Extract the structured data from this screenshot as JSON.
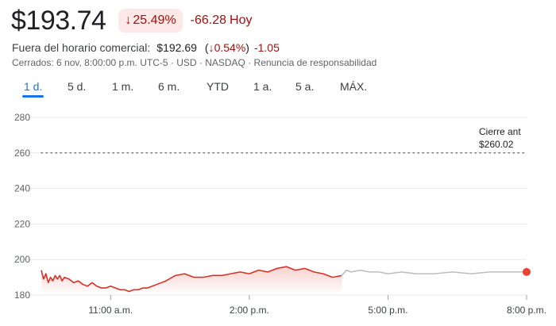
{
  "quote": {
    "price": "$193.74",
    "change_pct_arrow": "↓",
    "change_pct": "25.49%",
    "change_abs": "-66.28",
    "period_label": "Hoy"
  },
  "after_hours": {
    "label": "Fuera del horario comercial:",
    "price": "$192.69",
    "pct_open": "(",
    "pct_arrow": "↓",
    "pct": "0.54%",
    "pct_close": ")",
    "abs": "-1.05"
  },
  "meta": "Cerrados: 6 nov, 8:00:00 p.m. UTC-5 · USD · NASDAQ · Renuncia de responsabilidad",
  "ranges": [
    "1 d.",
    "5 d.",
    "1 m.",
    "6 m.",
    "YTD",
    "1 a.",
    "5 a.",
    "MÁX."
  ],
  "active_range": 0,
  "colors": {
    "down": "#d93025",
    "after_hours_line": "#bdbdbd",
    "accent": "#1a73e8"
  },
  "chart_data": {
    "type": "line",
    "ylim": [
      180,
      280
    ],
    "yticks": [
      180,
      200,
      220,
      240,
      260,
      280
    ],
    "xlim": [
      9.5,
      20.0
    ],
    "xticks": [
      {
        "value": 11,
        "label": "11:00 a.m."
      },
      {
        "value": 14,
        "label": "2:00 p.m."
      },
      {
        "value": 17,
        "label": "5:00 p.m."
      },
      {
        "value": 20,
        "label": "8:00 p.m."
      }
    ],
    "previous_close": {
      "label": "Cierre ant",
      "value_label": "$260.02",
      "value": 260.02
    },
    "series": [
      {
        "name": "regular",
        "x": [
          9.5,
          9.55,
          9.6,
          9.65,
          9.7,
          9.75,
          9.8,
          9.85,
          9.9,
          9.95,
          10.0,
          10.1,
          10.2,
          10.3,
          10.4,
          10.5,
          10.6,
          10.7,
          10.8,
          10.9,
          11.0,
          11.1,
          11.2,
          11.3,
          11.4,
          11.5,
          11.6,
          11.7,
          11.8,
          11.9,
          12.0,
          12.2,
          12.4,
          12.6,
          12.8,
          13.0,
          13.2,
          13.4,
          13.6,
          13.8,
          14.0,
          14.2,
          14.4,
          14.6,
          14.8,
          15.0,
          15.2,
          15.4,
          15.6,
          15.8,
          16.0
        ],
        "values": [
          194,
          189,
          192,
          187,
          190,
          188,
          191,
          189,
          191,
          188,
          190,
          189,
          187,
          188,
          186,
          185,
          187,
          185,
          184,
          184,
          185,
          184,
          183,
          183,
          182,
          183,
          183,
          184,
          184,
          185,
          186,
          188,
          191,
          192,
          190,
          190,
          191,
          191,
          192,
          193,
          192,
          194,
          193,
          195,
          196,
          194,
          195,
          193,
          192,
          190,
          191
        ]
      },
      {
        "name": "after_hours",
        "x": [
          16.0,
          16.1,
          16.2,
          16.4,
          16.6,
          16.8,
          17.0,
          17.3,
          17.6,
          18.0,
          18.4,
          18.8,
          19.2,
          19.6,
          20.0
        ],
        "values": [
          191,
          194,
          193,
          194,
          193,
          193,
          192,
          193,
          192,
          192,
          193,
          192,
          193,
          193,
          193
        ]
      }
    ]
  }
}
